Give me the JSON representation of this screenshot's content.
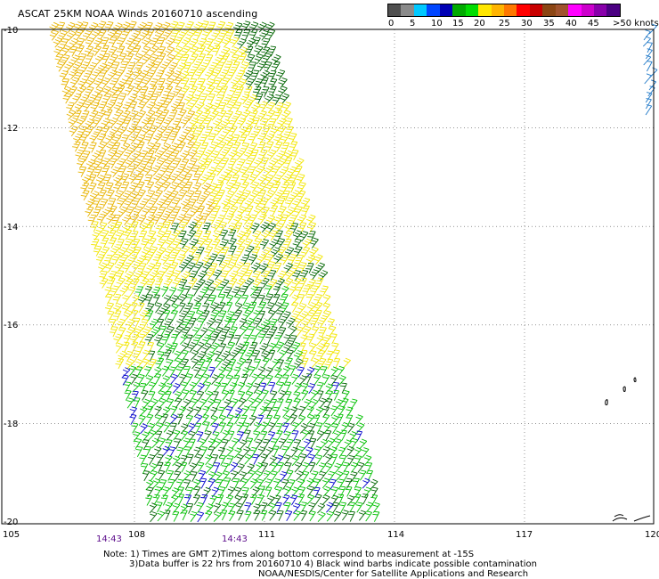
{
  "title": "ASCAT 25KM NOAA Winds 20160710 ascending",
  "colorbar": {
    "colors": [
      "#505050",
      "#8a8a8a",
      "#00c8ff",
      "#0046ff",
      "#0000b4",
      "#00aa00",
      "#00dc00",
      "#ffe600",
      "#ffb400",
      "#ff7800",
      "#ff0000",
      "#c80000",
      "#8b4513",
      "#a0522d",
      "#ff00ff",
      "#cc00cc",
      "#8800aa",
      "#4b0082"
    ],
    "labels": [
      "0",
      "5",
      "10",
      "15",
      "20",
      "25",
      "30",
      "35",
      "40",
      "45",
      ">50 knots"
    ]
  },
  "axes": {
    "lon_labels": [
      "105",
      "108",
      "111",
      "114",
      "117",
      "120"
    ],
    "lat_labels": [
      "-10",
      "-12",
      "-14",
      "-16",
      "-18",
      "-20"
    ],
    "time_labels": [
      "14:43",
      "14:43"
    ]
  },
  "notes": [
    "Note: 1) Times are GMT 2)Times along bottom correspond to measurement at -15S",
    "3)Data buffer is 22 hrs from 20160710 4) Black wind barbs indicate possible contamination",
    "NOAA/NESDIS/Center for Satellite Applications and Research"
  ],
  "wind_colors": {
    "calm": "#0000cc",
    "light": "#00c000",
    "moderate": "#006400",
    "strong": "#f2e600",
    "stronger": "#e8b400",
    "edge": "#1e78c8"
  }
}
